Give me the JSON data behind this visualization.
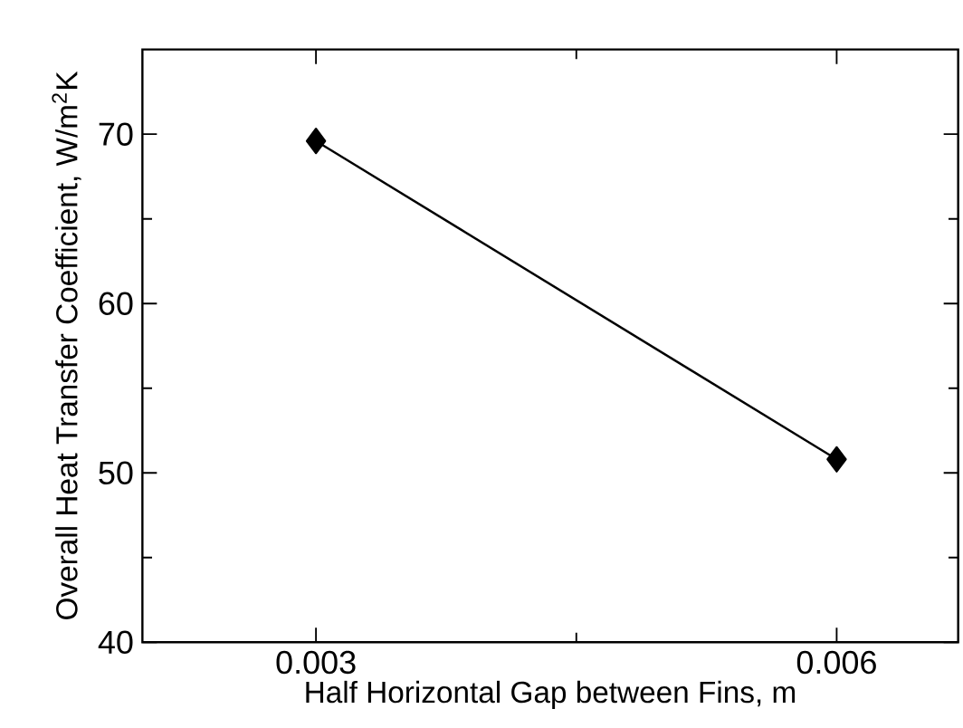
{
  "chart_data": {
    "type": "line",
    "xlabel": "Half Horizontal Gap between Fins, m",
    "ylabel": "Overall Heat Transfer Coefficient, W/m$^{2}$K",
    "x": [
      0.003,
      0.006
    ],
    "series": [
      {
        "color": "#000000",
        "values": [
          69.6,
          50.8
        ]
      }
    ],
    "xlim": [
      0.002,
      0.0067
    ],
    "ylim": [
      40,
      75
    ],
    "xticks": [
      {
        "value": 0.003,
        "label": "0.003"
      },
      {
        "value": 0.0045,
        "label": null
      },
      {
        "value": 0.006,
        "label": "0.006"
      }
    ],
    "yticks": [
      40,
      {
        "value": 45,
        "label": null
      },
      50,
      {
        "value": 55,
        "label": null
      },
      60,
      {
        "value": 65,
        "label": null
      },
      70
    ],
    "marker": "diamond",
    "line_style": "solid"
  }
}
